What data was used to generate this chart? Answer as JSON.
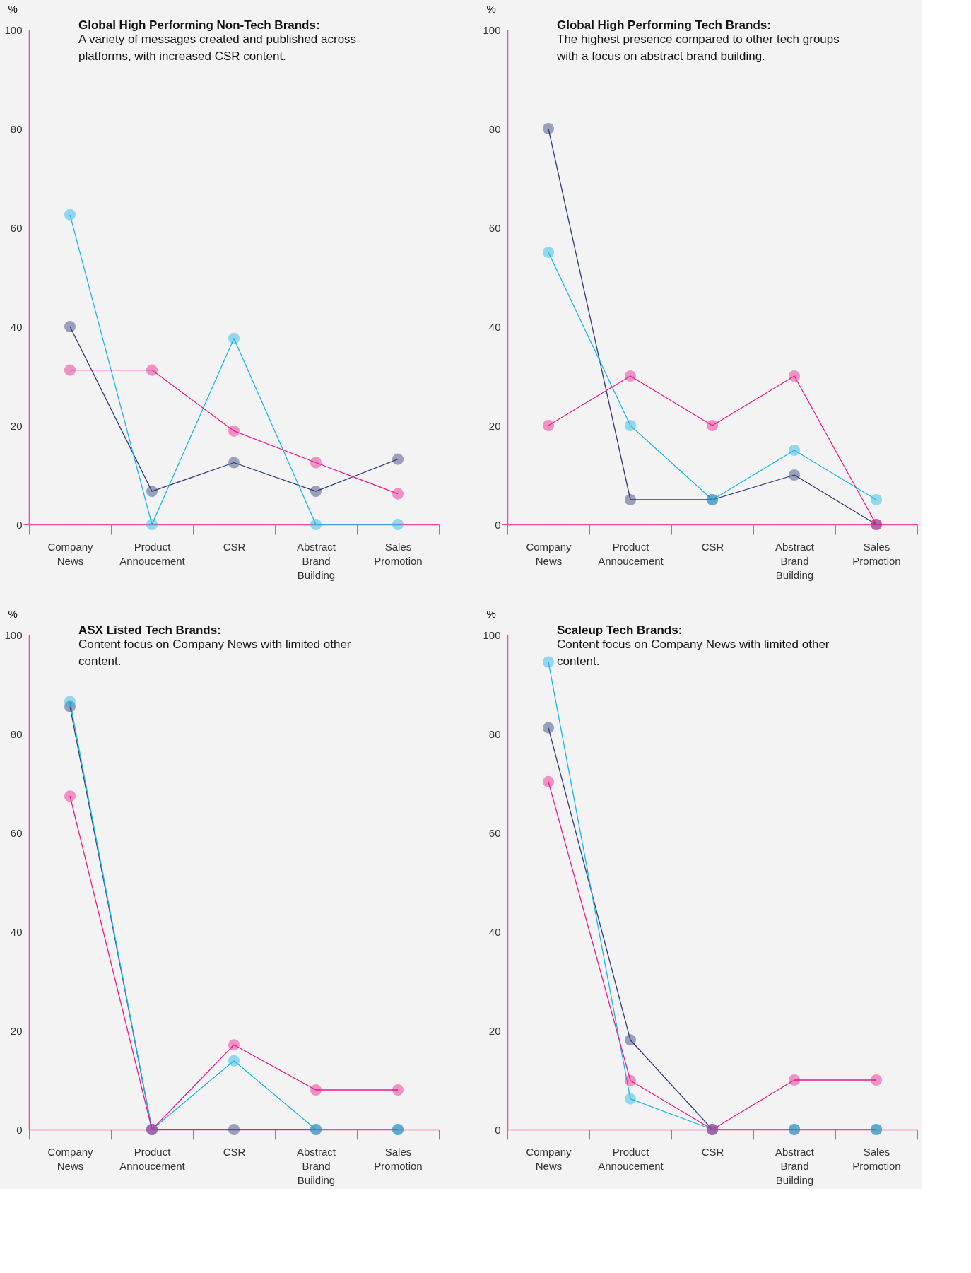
{
  "chart_data": [
    {
      "type": "line",
      "title": "Global High Performing Non-Tech Brands:",
      "subtitle": "A variety of messages created and published across platforms, with increased CSR content.",
      "ylabel": "%",
      "categories": [
        "Company News",
        "Product Annoucement",
        "CSR",
        "Abstract Brand Building",
        "Sales Promotion"
      ],
      "ylim": [
        0,
        100
      ],
      "yticks": [
        0,
        20,
        40,
        60,
        80,
        100
      ],
      "grid": false,
      "marker": "circle",
      "line_style": "solid",
      "series": [
        {
          "color": "#2e3a78",
          "values": [
            40,
            6.7,
            12.5,
            6.7,
            13.2
          ]
        },
        {
          "color": "#1ab6e8",
          "values": [
            62.6,
            0,
            37.6,
            0,
            0
          ]
        },
        {
          "color": "#ec1a8c",
          "values": [
            31.2,
            31.2,
            18.9,
            12.5,
            6.2
          ]
        }
      ]
    },
    {
      "type": "line",
      "title": "Global High Performing Tech Brands:",
      "subtitle": "The highest presence compared to other tech groups with a focus on abstract brand building.",
      "ylabel": "%",
      "categories": [
        "Company News",
        "Product Annoucement",
        "CSR",
        "Abstract Brand Building",
        "Sales Promotion"
      ],
      "ylim": [
        0,
        100
      ],
      "yticks": [
        0,
        20,
        40,
        60,
        80,
        100
      ],
      "grid": false,
      "marker": "circle",
      "line_style": "solid",
      "series": [
        {
          "color": "#2e3a78",
          "values": [
            80,
            5,
            5,
            10,
            0
          ]
        },
        {
          "color": "#1ab6e8",
          "values": [
            55,
            20,
            5,
            15,
            5
          ]
        },
        {
          "color": "#ec1a8c",
          "values": [
            20,
            30,
            20,
            30,
            0
          ]
        }
      ]
    },
    {
      "type": "line",
      "title": "ASX Listed Tech Brands:",
      "subtitle": "Content focus on Company News with limited other content.",
      "ylabel": "%",
      "categories": [
        "Company News",
        "Product Annoucement",
        "CSR",
        "Abstract Brand Building",
        "Sales Promotion"
      ],
      "ylim": [
        0,
        100
      ],
      "yticks": [
        0,
        20,
        40,
        60,
        80,
        100
      ],
      "grid": false,
      "marker": "circle",
      "line_style": "solid",
      "series": [
        {
          "color": "#2e3a78",
          "values": [
            85.5,
            0,
            0,
            0,
            0
          ]
        },
        {
          "color": "#1ab6e8",
          "values": [
            86.5,
            0,
            13.9,
            0,
            0
          ]
        },
        {
          "color": "#ec1a8c",
          "values": [
            67.4,
            0,
            17.1,
            8,
            8
          ]
        }
      ]
    },
    {
      "type": "line",
      "title": "Scaleup Tech Brands:",
      "subtitle": "Content focus on Company News with limited other content.",
      "ylabel": "%",
      "categories": [
        "Company News",
        "Product Annoucement",
        "CSR",
        "Abstract Brand Building",
        "Sales Promotion"
      ],
      "ylim": [
        0,
        100
      ],
      "yticks": [
        0,
        20,
        40,
        60,
        80,
        100
      ],
      "grid": false,
      "marker": "circle",
      "line_style": "solid",
      "series": [
        {
          "color": "#2e3a78",
          "values": [
            81.2,
            18.1,
            0,
            0,
            0
          ]
        },
        {
          "color": "#1ab6e8",
          "values": [
            94.5,
            6.2,
            0,
            0,
            0
          ]
        },
        {
          "color": "#ec1a8c",
          "values": [
            70.3,
            9.9,
            0,
            10,
            10
          ]
        }
      ]
    }
  ]
}
